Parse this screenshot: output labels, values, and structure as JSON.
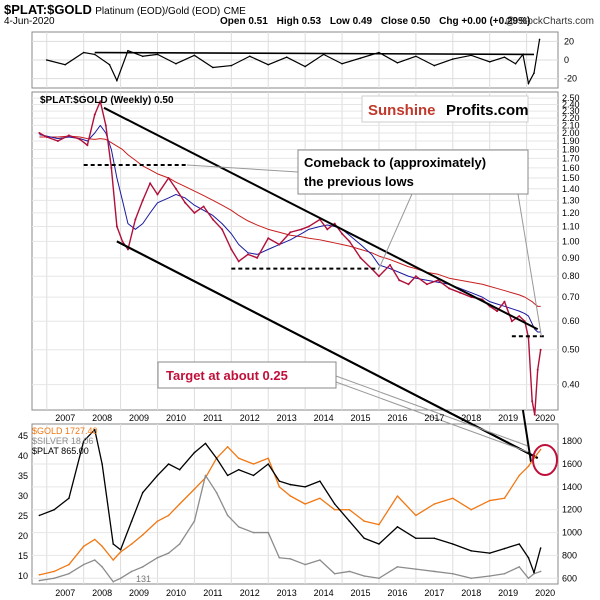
{
  "header": {
    "symbol": "$PLAT:$GOLD",
    "description": "Platinum (EOD)/Gold (EOD)",
    "exchange": "CME",
    "date": "4-Jun-2020",
    "open": "Open 0.51",
    "high": "High 0.53",
    "low": "Low 0.49",
    "close": "Close 0.50",
    "chg": "Chg +0.00 (+0.29%)",
    "credit": "@ StockCharts.com"
  },
  "brand": {
    "part1": "Sunshine",
    "part2": "Profits.com",
    "part1_color": "#c0392b"
  },
  "colors": {
    "gold": "#f07814",
    "silver": "#8c8c8c",
    "plat": "#000000",
    "price": "#b0103a",
    "ma_short": "#1a1aa0",
    "ma_long": "#c81e1e",
    "target_text": "#c0103a"
  },
  "annotations": {
    "comeback": "Comeback to (approximately) the previous lows",
    "target": "Target at about 0.25"
  },
  "chart_data": [
    {
      "type": "line",
      "panel": "oscillator",
      "y_ticks": [
        "20",
        "0",
        "-20"
      ],
      "ylim": [
        -30,
        30
      ],
      "x": [
        2007.0,
        2007.5,
        2008.0,
        2008.3,
        2008.7,
        2008.9,
        2009.2,
        2009.6,
        2010.0,
        2010.5,
        2011.0,
        2011.5,
        2012.0,
        2012.5,
        2013.0,
        2013.5,
        2014.0,
        2014.5,
        2015.0,
        2015.5,
        2016.0,
        2016.5,
        2017.0,
        2017.5,
        2018.0,
        2018.5,
        2019.0,
        2019.4,
        2019.7,
        2019.9,
        2020.05,
        2020.2,
        2020.35
      ],
      "values": [
        0,
        -5,
        8,
        6,
        -5,
        -22,
        10,
        4,
        6,
        -4,
        5,
        -8,
        -6,
        4,
        -5,
        3,
        -7,
        6,
        -4,
        2,
        8,
        -3,
        4,
        -6,
        1,
        5,
        -2,
        3,
        -4,
        6,
        -25,
        -14,
        22
      ]
    },
    {
      "type": "line",
      "panel": "main",
      "title": "$PLAT:$GOLD (Weekly) 0.50",
      "scale": "log",
      "ylim": [
        0.34,
        2.6
      ],
      "y_ticks": [
        "2.50",
        "2.40",
        "2.30",
        "2.20",
        "2.10",
        "2.00",
        "1.90",
        "1.80",
        "1.70",
        "1.60",
        "1.50",
        "1.40",
        "1.30",
        "1.20",
        "1.10",
        "1.00",
        "0.90",
        "0.80",
        "0.70",
        "0.60",
        "0.50",
        "0.40"
      ],
      "x_ticks": [
        "2007",
        "2008",
        "2009",
        "2010",
        "2011",
        "2012",
        "2013",
        "2014",
        "2015",
        "2016",
        "2017",
        "2018",
        "2019",
        "2020"
      ],
      "xlim": [
        2006.6,
        2020.85
      ],
      "x": [
        2006.8,
        2007.0,
        2007.3,
        2007.6,
        2007.9,
        2008.1,
        2008.3,
        2008.45,
        2008.6,
        2008.75,
        2008.9,
        2009.05,
        2009.2,
        2009.4,
        2009.6,
        2009.8,
        2010.0,
        2010.3,
        2010.5,
        2010.75,
        2011.0,
        2011.25,
        2011.5,
        2011.75,
        2012.0,
        2012.2,
        2012.45,
        2012.7,
        2013.0,
        2013.3,
        2013.6,
        2013.9,
        2014.1,
        2014.4,
        2014.6,
        2014.8,
        2015.0,
        2015.2,
        2015.5,
        2015.8,
        2016.0,
        2016.3,
        2016.55,
        2016.8,
        2017.0,
        2017.3,
        2017.6,
        2017.9,
        2018.2,
        2018.5,
        2018.8,
        2019.0,
        2019.2,
        2019.4,
        2019.6,
        2019.8,
        2019.95,
        2020.05,
        2020.15,
        2020.22,
        2020.3,
        2020.38
      ],
      "values": [
        2.0,
        1.95,
        1.9,
        1.97,
        1.92,
        1.85,
        2.25,
        2.45,
        2.1,
        1.6,
        1.1,
        1.0,
        0.95,
        1.15,
        1.3,
        1.45,
        1.35,
        1.5,
        1.4,
        1.28,
        1.2,
        1.25,
        1.15,
        1.08,
        0.95,
        0.88,
        0.92,
        0.9,
        1.02,
        0.98,
        1.06,
        1.08,
        1.1,
        1.15,
        1.08,
        1.12,
        1.05,
        1.0,
        0.9,
        0.84,
        0.8,
        0.86,
        0.78,
        0.76,
        0.8,
        0.76,
        0.78,
        0.74,
        0.72,
        0.7,
        0.69,
        0.66,
        0.64,
        0.68,
        0.6,
        0.62,
        0.6,
        0.54,
        0.36,
        0.33,
        0.44,
        0.5
      ],
      "ma_short_values": [
        1.98,
        1.96,
        1.93,
        1.95,
        1.93,
        1.9,
        2.0,
        2.1,
        2.0,
        1.8,
        1.5,
        1.3,
        1.12,
        1.08,
        1.12,
        1.2,
        1.28,
        1.32,
        1.35,
        1.32,
        1.26,
        1.22,
        1.18,
        1.12,
        1.05,
        0.98,
        0.93,
        0.92,
        0.95,
        0.98,
        1.01,
        1.05,
        1.08,
        1.1,
        1.11,
        1.1,
        1.08,
        1.04,
        0.98,
        0.92,
        0.86,
        0.84,
        0.82,
        0.8,
        0.79,
        0.78,
        0.77,
        0.76,
        0.74,
        0.72,
        0.7,
        0.68,
        0.67,
        0.66,
        0.65,
        0.64,
        0.63,
        0.62,
        0.59,
        0.57,
        0.56,
        0.56
      ],
      "ma_long_values": [
        1.95,
        1.95,
        1.95,
        1.96,
        1.95,
        1.93,
        1.92,
        1.93,
        1.92,
        1.88,
        1.84,
        1.8,
        1.74,
        1.68,
        1.62,
        1.58,
        1.54,
        1.5,
        1.46,
        1.42,
        1.38,
        1.34,
        1.3,
        1.26,
        1.22,
        1.18,
        1.14,
        1.11,
        1.08,
        1.06,
        1.04,
        1.03,
        1.02,
        1.01,
        1.0,
        0.99,
        0.98,
        0.97,
        0.95,
        0.93,
        0.91,
        0.89,
        0.87,
        0.85,
        0.84,
        0.82,
        0.81,
        0.79,
        0.78,
        0.77,
        0.76,
        0.75,
        0.74,
        0.73,
        0.72,
        0.71,
        0.7,
        0.69,
        0.68,
        0.67,
        0.66,
        0.66
      ],
      "trendlines": [
        {
          "x": [
            2008.55,
            2020.3
          ],
          "y": [
            2.35,
            0.57
          ]
        },
        {
          "x": [
            2008.9,
            2020.3
          ],
          "y": [
            1.0,
            0.25
          ]
        },
        {
          "x": [
            2008.9,
            2020.3
          ],
          "y": [
            1.0,
            0.25
          ]
        }
      ],
      "support_lines": [
        {
          "x": [
            2008.0,
            2010.8
          ],
          "y": [
            1.63,
            1.63
          ]
        },
        {
          "x": [
            2012.0,
            2016.0
          ],
          "y": [
            0.84,
            0.84
          ]
        },
        {
          "x": [
            2019.6,
            2020.5
          ],
          "y": [
            0.545,
            0.545
          ]
        }
      ]
    },
    {
      "type": "line",
      "panel": "metals",
      "legend": [
        "$GOLD 1727.40",
        "$SILVER 18.06",
        "$PLAT 865.00"
      ],
      "legend_position": "top-left",
      "y_left_ticks": [
        "45",
        "40",
        "35",
        "30",
        "25",
        "20",
        "15",
        "10"
      ],
      "y_right_ticks": [
        "1800",
        "1600",
        "1400",
        "1200",
        "1000",
        "800",
        "600"
      ],
      "ylim": [
        550,
        1950
      ],
      "x_ticks": [
        "2007",
        "2008",
        "2009",
        "2010",
        "2011",
        "2012",
        "2013",
        "2014",
        "2015",
        "2016",
        "2017",
        "2018",
        "2019",
        "2020"
      ],
      "annotation_low": "131",
      "x": [
        2006.8,
        2007.2,
        2007.6,
        2008.0,
        2008.3,
        2008.5,
        2008.8,
        2009.0,
        2009.3,
        2009.6,
        2010.0,
        2010.3,
        2010.6,
        2011.0,
        2011.3,
        2011.6,
        2011.9,
        2012.2,
        2012.6,
        2013.0,
        2013.3,
        2013.6,
        2014.0,
        2014.4,
        2014.8,
        2015.2,
        2015.6,
        2016.0,
        2016.5,
        2017.0,
        2017.5,
        2018.0,
        2018.5,
        2019.0,
        2019.4,
        2019.8,
        2020.05,
        2020.2,
        2020.38
      ],
      "series": [
        {
          "name": "$GOLD 1727.40",
          "values": [
            630,
            660,
            720,
            880,
            940,
            880,
            760,
            830,
            900,
            980,
            1100,
            1150,
            1250,
            1380,
            1480,
            1650,
            1750,
            1650,
            1600,
            1650,
            1400,
            1320,
            1250,
            1300,
            1200,
            1200,
            1100,
            1070,
            1320,
            1150,
            1250,
            1300,
            1200,
            1280,
            1300,
            1500,
            1580,
            1650,
            1727
          ]
        },
        {
          "name": "$SILVER 18.06",
          "values": [
            580,
            600,
            640,
            720,
            760,
            700,
            570,
            600,
            660,
            700,
            780,
            820,
            900,
            1100,
            1500,
            1350,
            1150,
            1050,
            1000,
            1000,
            780,
            770,
            720,
            760,
            640,
            660,
            620,
            600,
            700,
            680,
            660,
            640,
            600,
            620,
            640,
            700,
            600,
            640,
            660
          ]
        },
        {
          "name": "$PLAT 865.00",
          "values": [
            1150,
            1200,
            1300,
            1800,
            1900,
            1600,
            900,
            850,
            1100,
            1350,
            1500,
            1600,
            1550,
            1700,
            1780,
            1650,
            1500,
            1550,
            1500,
            1600,
            1450,
            1420,
            1400,
            1450,
            1250,
            1100,
            950,
            900,
            1050,
            950,
            950,
            900,
            840,
            820,
            860,
            900,
            780,
            650,
            865
          ]
        }
      ]
    }
  ]
}
